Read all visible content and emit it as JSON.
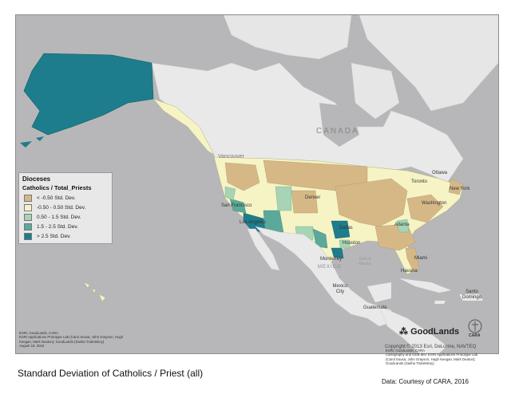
{
  "legend": {
    "title": "Dioceses",
    "field": "Catholics / Total_Priests",
    "classes": [
      {
        "label": "< -0.50 Std. Dev.",
        "color": "#d6b887"
      },
      {
        "label": "-0.50 - 0.50 Std. Dev.",
        "color": "#f6f4c4"
      },
      {
        "label": "0.50 - 1.5 Std. Dev.",
        "color": "#a6d4b4"
      },
      {
        "label": "1.5 - 2.5 Std. Dev.",
        "color": "#5ba99b"
      },
      {
        "label": "> 2.5 Std. Dev.",
        "color": "#1e7d8c"
      }
    ]
  },
  "map_labels": {
    "canada": "CANADA",
    "vancouver": "Vancouver",
    "ottawa": "Ottawa",
    "toronto": "Toronto",
    "new_york": "New York",
    "washington": "Washington",
    "denver": "Denver",
    "san_francisco": "San Francisco",
    "los_angeles": "Los Angeles",
    "dallas": "Dallas",
    "houston": "Houston",
    "atlanta": "Atlanta",
    "miami": "Miami",
    "monterrey": "Monterrey",
    "mexico": "MEXICO",
    "mexico_city": "Mexico City",
    "havana": "Havana",
    "guatemala": "Guatemala",
    "santo_domingo": "Santo Domingo",
    "gulf_of_mexico": "Gulf of Mexico"
  },
  "credit_left": [
    "ESRI, GoodLands, CARA",
    "ESRI Applications Prototype Lab (Carol Sousa, John Grayson, Hugh",
    "Keegan, Mark Deaton); GoodLands (Sasha Trubetskoy)",
    "August 19, 2016"
  ],
  "credit_right": [
    "ESRI, GoodLands, CARA",
    "Cartography and GDB dev: ESRI Applications Prototype Lab",
    "(Carol Sousa, John Grayson, Hugh Keegan, Mark Deaton);",
    "GoodLands (Sasha Trubetskoy)"
  ],
  "copyright": "Copyright:© 2013 Esri, DeLorme, NAVTEQ",
  "goodlands_logo": "GoodLands",
  "cara_logo": "CARA",
  "caption": "Standard Deviation of Catholics / Priest (all)",
  "source": "Data: Courtesy of CARA, 2016"
}
